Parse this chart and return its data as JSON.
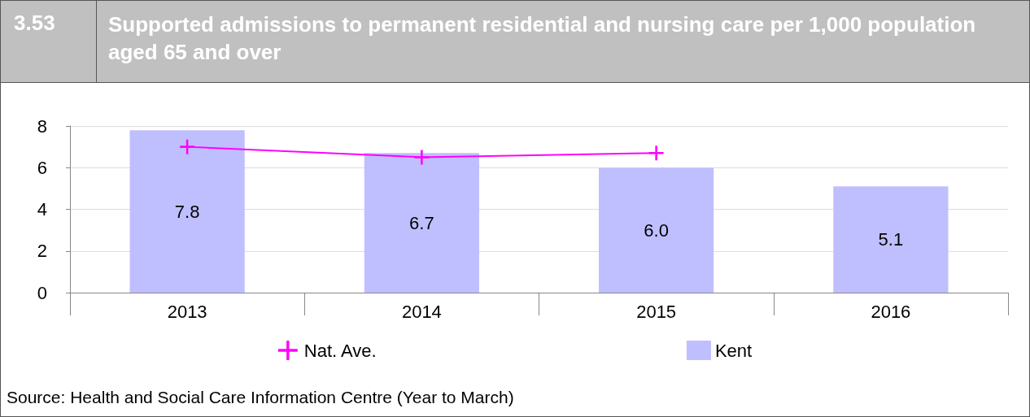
{
  "chart_data": {
    "type": "bar",
    "title": "Supported admissions to permanent residential and nursing care per 1,000 population aged 65 and over",
    "annotations": [
      "3.53",
      "Source: Health and Social Care Information Centre (Year to March)"
    ],
    "categories": [
      "2013",
      "2014",
      "2015",
      "2016"
    ],
    "series": [
      {
        "name": "Nat. Ave.",
        "type": "line",
        "color": "#ff00ff",
        "values": [
          7.0,
          6.5,
          6.7,
          null
        ]
      },
      {
        "name": "Kent",
        "color": "#bfbfff",
        "values": [
          7.8,
          6.7,
          6.0,
          5.1
        ],
        "value_labels": [
          "7.8",
          "6.7",
          "6.0",
          "5.1"
        ]
      }
    ],
    "ylim": [
      0,
      8
    ],
    "yticks": [
      0,
      2,
      4,
      6,
      8
    ],
    "grid": "y",
    "legend": "bottom",
    "marker": "cross",
    "line_style": "solid"
  }
}
